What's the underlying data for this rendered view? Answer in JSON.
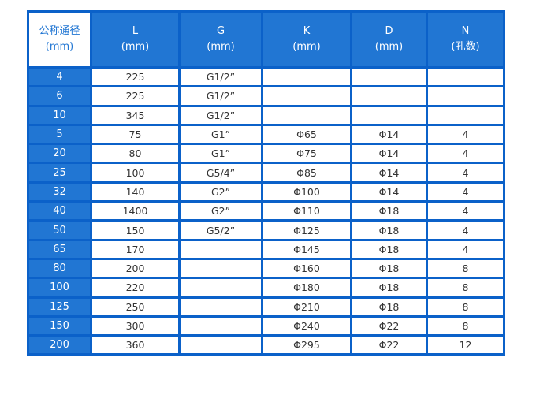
{
  "headers": [
    [
      "公称通径",
      "(mm)"
    ],
    [
      "L",
      "(mm)"
    ],
    [
      "G",
      "(mm)"
    ],
    [
      "K",
      "(mm)"
    ],
    [
      "D",
      "(mm)"
    ],
    [
      "N",
      "(孔数)"
    ]
  ],
  "rows": [
    [
      "4",
      "225",
      "G1/2”",
      "",
      "",
      ""
    ],
    [
      "6",
      "225",
      "G1/2”",
      "",
      "",
      ""
    ],
    [
      "10",
      "345",
      "G1/2”",
      "",
      "",
      ""
    ],
    [
      "5",
      "75",
      "G1”",
      "Φ65",
      "Φ14",
      "4"
    ],
    [
      "20",
      "80",
      "G1”",
      "Φ75",
      "Φ14",
      "4"
    ],
    [
      "25",
      "100",
      "G5/4”",
      "Φ85",
      "Φ14",
      "4"
    ],
    [
      "32",
      "140",
      "G2”",
      "Φ100",
      "Φ14",
      "4"
    ],
    [
      "40",
      "1400",
      "G2”",
      "Φ110",
      "Φ18",
      "4"
    ],
    [
      "50",
      "150",
      "G5/2”",
      "Φ125",
      "Φ18",
      "4"
    ],
    [
      "65",
      "170",
      "",
      "Φ145",
      "Φ18",
      "4"
    ],
    [
      "80",
      "200",
      "",
      "Φ160",
      "Φ18",
      "8"
    ],
    [
      "100",
      "220",
      "",
      "Φ180",
      "Φ18",
      "8"
    ],
    [
      "125",
      "250",
      "",
      "Φ210",
      "Φ18",
      "8"
    ],
    [
      "150",
      "300",
      "",
      "Φ240",
      "Φ22",
      "8"
    ],
    [
      "200",
      "360",
      "",
      "Φ295",
      "Φ22",
      "12"
    ]
  ],
  "colors": {
    "header_blue": "#2176d3",
    "border_blue": "#0b61c9"
  }
}
